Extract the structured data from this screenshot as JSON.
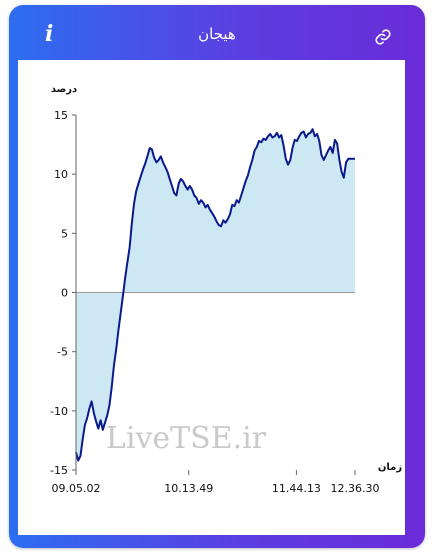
{
  "header": {
    "title": "هیجان",
    "info_icon": "info-icon",
    "link_icon": "link-icon"
  },
  "watermark": "LiveTSE.ir",
  "colors": {
    "gradient_start": "#2d6ef0",
    "gradient_end": "#6a2bd8",
    "line": "#0a1a8c",
    "fill": "#cde8f2",
    "zero_line": "#9a9a9a"
  },
  "chart_data": {
    "type": "area",
    "ylabel": "درصد",
    "xlabel": "زمان",
    "ylim": [
      -15,
      15
    ],
    "yticks": [
      15,
      10,
      5,
      0,
      -5,
      -10,
      -15
    ],
    "xlim": [
      0,
      1
    ],
    "xticks": [
      {
        "label": "09.05.02",
        "pos": 0.0
      },
      {
        "label": "10.13.49",
        "pos": 0.404
      },
      {
        "label": "11.44.13",
        "pos": 0.79
      },
      {
        "label": "12.36.30",
        "pos": 1.0
      }
    ],
    "x": [
      0.0,
      0.008,
      0.016,
      0.024,
      0.032,
      0.04,
      0.048,
      0.056,
      0.064,
      0.072,
      0.08,
      0.088,
      0.096,
      0.104,
      0.112,
      0.12,
      0.128,
      0.136,
      0.144,
      0.152,
      0.16,
      0.168,
      0.176,
      0.184,
      0.192,
      0.2,
      0.208,
      0.216,
      0.224,
      0.232,
      0.24,
      0.248,
      0.256,
      0.264,
      0.272,
      0.28,
      0.288,
      0.296,
      0.304,
      0.312,
      0.32,
      0.328,
      0.336,
      0.344,
      0.352,
      0.36,
      0.368,
      0.376,
      0.384,
      0.392,
      0.4,
      0.408,
      0.416,
      0.424,
      0.432,
      0.44,
      0.448,
      0.456,
      0.464,
      0.472,
      0.48,
      0.488,
      0.496,
      0.504,
      0.512,
      0.52,
      0.528,
      0.536,
      0.544,
      0.552,
      0.56,
      0.568,
      0.576,
      0.584,
      0.592,
      0.6,
      0.608,
      0.616,
      0.624,
      0.632,
      0.64,
      0.648,
      0.656,
      0.664,
      0.672,
      0.68,
      0.688,
      0.696,
      0.704,
      0.712,
      0.72,
      0.728,
      0.736,
      0.744,
      0.752,
      0.76,
      0.768,
      0.776,
      0.784,
      0.792,
      0.8,
      0.808,
      0.816,
      0.824,
      0.832,
      0.84,
      0.848,
      0.856,
      0.864,
      0.872,
      0.88,
      0.888,
      0.896,
      0.904,
      0.912,
      0.92,
      0.928,
      0.936,
      0.944,
      0.952,
      0.96,
      0.968,
      0.976,
      0.984,
      0.992,
      1.0
    ],
    "y": [
      -13.5,
      -14.2,
      -13.8,
      -12.4,
      -11.2,
      -10.6,
      -9.8,
      -9.2,
      -10.2,
      -10.9,
      -11.5,
      -10.8,
      -11.6,
      -11.0,
      -10.4,
      -9.5,
      -8.0,
      -6.2,
      -4.8,
      -3.2,
      -1.8,
      -0.3,
      1.2,
      2.5,
      3.8,
      5.8,
      7.5,
      8.6,
      9.2,
      9.8,
      10.4,
      10.9,
      11.5,
      12.2,
      12.1,
      11.4,
      11.0,
      11.2,
      11.5,
      11.0,
      10.6,
      10.2,
      9.6,
      9.0,
      8.4,
      8.2,
      9.2,
      9.6,
      9.4,
      9.0,
      8.7,
      9.0,
      8.7,
      8.2,
      8.0,
      7.5,
      7.8,
      7.6,
      7.2,
      7.4,
      7.0,
      6.7,
      6.4,
      6.0,
      5.7,
      5.6,
      6.1,
      5.9,
      6.2,
      6.6,
      7.4,
      7.3,
      7.8,
      7.6,
      8.2,
      8.8,
      9.4,
      9.9,
      10.6,
      11.2,
      12.0,
      12.3,
      12.8,
      12.7,
      13.0,
      12.9,
      13.2,
      13.4,
      13.1,
      13.2,
      13.5,
      13.1,
      13.3,
      12.4,
      11.3,
      10.8,
      11.2,
      12.2,
      12.9,
      12.8,
      13.2,
      13.5,
      13.6,
      13.1,
      13.4,
      13.5,
      13.8,
      13.2,
      13.4,
      12.8,
      11.6,
      11.2,
      11.6,
      12.0,
      12.3,
      11.8,
      12.9,
      12.6,
      11.2,
      10.2,
      9.7,
      11.0,
      11.3,
      11.3,
      11.3,
      11.3
    ]
  }
}
